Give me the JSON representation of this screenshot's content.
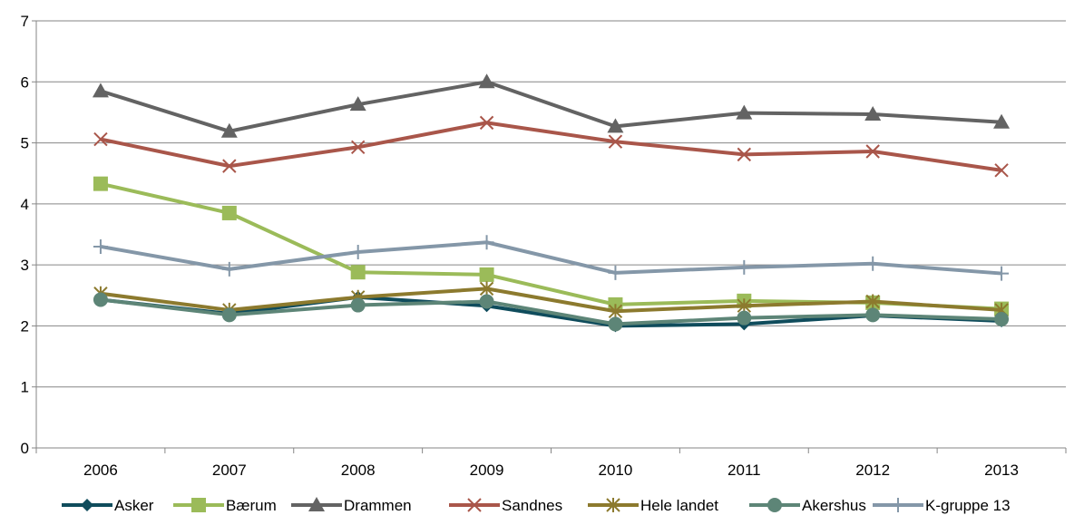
{
  "chart_data": {
    "type": "line",
    "title": "",
    "xlabel": "",
    "ylabel": "",
    "categories": [
      "2006",
      "2007",
      "2008",
      "2009",
      "2010",
      "2011",
      "2012",
      "2013"
    ],
    "ylim": [
      0,
      7
    ],
    "yticks": [
      "0",
      "1",
      "2",
      "3",
      "4",
      "5",
      "6",
      "7"
    ],
    "grid": "horizontal",
    "legend_position": "bottom",
    "series": [
      {
        "name": "Asker",
        "color": "#0f4c5c",
        "marker": "diamond",
        "values": [
          2.43,
          2.2,
          2.47,
          2.33,
          2.0,
          2.03,
          2.17,
          2.08
        ]
      },
      {
        "name": "Bærum",
        "color": "#9bbb59",
        "marker": "square",
        "values": [
          4.33,
          3.85,
          2.88,
          2.84,
          2.35,
          2.41,
          2.38,
          2.28
        ]
      },
      {
        "name": "Drammen",
        "color": "#636363",
        "marker": "triangle",
        "values": [
          5.85,
          5.19,
          5.63,
          6.0,
          5.27,
          5.49,
          5.47,
          5.34
        ]
      },
      {
        "name": "Sandnes",
        "color": "#a9564a",
        "marker": "x",
        "values": [
          5.06,
          4.62,
          4.93,
          5.33,
          5.02,
          4.81,
          4.86,
          4.55
        ]
      },
      {
        "name": "Hele landet",
        "color": "#8c7a2e",
        "marker": "star",
        "values": [
          2.53,
          2.26,
          2.47,
          2.61,
          2.24,
          2.33,
          2.4,
          2.26
        ]
      },
      {
        "name": "Akershus",
        "color": "#5d8577",
        "marker": "circle",
        "values": [
          2.43,
          2.18,
          2.34,
          2.4,
          2.03,
          2.13,
          2.18,
          2.11
        ]
      },
      {
        "name": "K-gruppe 13",
        "color": "#8497a8",
        "marker": "plus",
        "values": [
          3.3,
          2.93,
          3.21,
          3.37,
          2.87,
          2.96,
          3.02,
          2.86
        ]
      }
    ]
  }
}
